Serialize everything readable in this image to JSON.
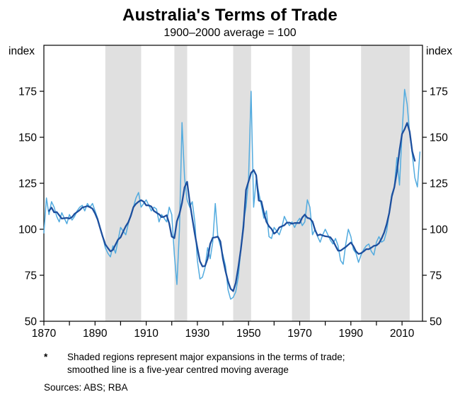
{
  "page": {
    "title": "Australia's Terms of Trade",
    "subtitle": "1900–2000 average = 100"
  },
  "footnote": {
    "marker": "*",
    "line1": "Shaded regions represent major expansions in the terms of trade;",
    "line2": "smoothed line is a five-year centred moving average"
  },
  "sources": "Sources: ABS; RBA",
  "chart_data": {
    "type": "line",
    "title": "Australia's Terms of Trade",
    "subtitle": "1900–2000 average = 100",
    "unit_label": "index",
    "x_start": 1870,
    "x_end": 2018,
    "last_data_year": 2017,
    "ylim": [
      50,
      200
    ],
    "y_ticks": [
      50,
      75,
      100,
      125,
      150,
      175
    ],
    "x_ticks": [
      1870,
      1890,
      1910,
      1930,
      1950,
      1970,
      1990,
      2010
    ],
    "x_minor_tick_step": 10,
    "grid": false,
    "legend": "none",
    "colors": {
      "annual": "#52abdf",
      "smoothed": "#1d4f9e",
      "shading": "#e0e0e0",
      "axis": "#000000"
    },
    "shaded_regions": [
      [
        1894,
        1908
      ],
      [
        1921,
        1926
      ],
      [
        1944,
        1951
      ],
      [
        1967,
        1974
      ],
      [
        1994,
        2013
      ]
    ],
    "series": [
      {
        "name": "Terms of trade (annual)",
        "type": "line",
        "color_key": "annual",
        "start_year": 1870,
        "values": [
          98,
          117,
          108,
          115,
          112,
          107,
          104,
          109,
          106,
          103,
          108,
          105,
          107,
          110,
          112,
          113,
          110,
          114,
          112,
          114,
          110,
          106,
          101,
          96,
          90,
          87,
          85,
          91,
          87,
          94,
          101,
          99,
          97,
          103,
          108,
          112,
          117,
          120,
          112,
          114,
          116,
          113,
          110,
          112,
          111,
          104,
          108,
          106,
          104,
          112,
          108,
          86,
          70,
          100,
          158,
          128,
          116,
          112,
          115,
          104,
          83,
          73,
          74,
          79,
          90,
          84,
          93,
          114,
          96,
          91,
          86,
          80,
          67,
          62,
          63,
          66,
          74,
          89,
          104,
          112,
          127,
          175,
          112,
          127,
          120,
          113,
          106,
          110,
          96,
          95,
          101,
          99,
          97,
          101,
          107,
          104,
          102,
          104,
          101,
          104,
          106,
          102,
          104,
          116,
          112,
          97,
          100,
          96,
          93,
          97,
          100,
          97,
          94,
          92,
          95,
          91,
          83,
          81,
          92,
          100,
          96,
          89,
          87,
          82,
          86,
          89,
          91,
          92,
          88,
          86,
          93,
          96,
          93,
          94,
          99,
          109,
          119,
          123,
          139,
          124,
          152,
          176,
          168,
          152,
          141,
          128,
          123,
          142
        ]
      },
      {
        "name": "Smoothed terms of trade",
        "type": "line",
        "color_key": "smoothed",
        "derived_from": "Terms of trade (annual)",
        "method": "five-year centred moving average"
      }
    ]
  }
}
